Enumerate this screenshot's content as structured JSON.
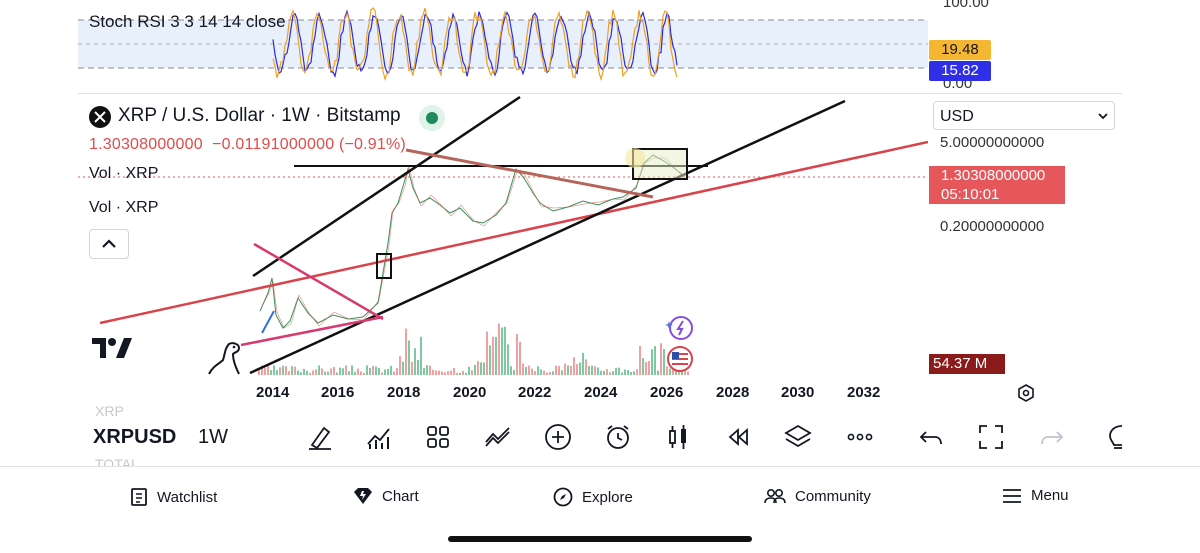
{
  "stoch_rsi": {
    "title": "Stoch RSI 3 3 14 14 close",
    "scale_top": "100.00",
    "scale_bottom": "0.00",
    "k_value": "19.48",
    "d_value": "15.82",
    "k_color": "#f0a020",
    "d_color": "#2a2ae0"
  },
  "legend": {
    "title": "XRP / U.S. Dollar · 1W · Bitstamp",
    "price": "1.30308000000",
    "change": "−0.01191000000",
    "change_pct": "(−0.91%)",
    "vol_label_1": "Vol · XRP",
    "vol_label_2": "Vol · XRP"
  },
  "price_scale": {
    "currency": "USD",
    "top_label": "5.00000000000",
    "mid_label": "0.20000000000",
    "current_price": "1.30308000000",
    "countdown": "05:10:01",
    "volume": "54.37 M"
  },
  "time_axis": {
    "years": [
      "2014",
      "2016",
      "2018",
      "2020",
      "2022",
      "2024",
      "2026",
      "2028",
      "2030",
      "2032"
    ]
  },
  "toolbar": {
    "symbol": "XRPUSD",
    "interval": "1W",
    "faded_top": "XRP",
    "faded_bottom": "TOTAL"
  },
  "nav": {
    "items": [
      {
        "label": "Watchlist",
        "icon": "watchlist-icon"
      },
      {
        "label": "Chart",
        "icon": "chart-icon"
      },
      {
        "label": "Explore",
        "icon": "compass-icon"
      },
      {
        "label": "Community",
        "icon": "community-icon"
      },
      {
        "label": "Menu",
        "icon": "menu-icon"
      }
    ]
  },
  "colors": {
    "up": "#26a69a",
    "down": "#ef5350",
    "trend_red": "#d9434a",
    "trend_pink": "#d63a6e"
  }
}
